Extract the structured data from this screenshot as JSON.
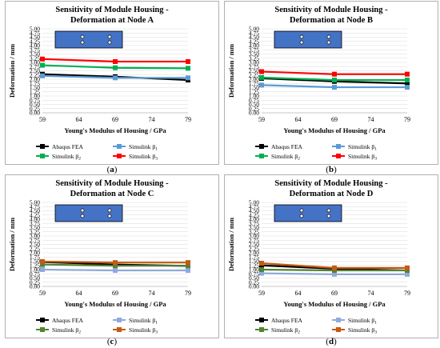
{
  "figures": [
    {
      "caption_open": "(",
      "caption_letter": "a",
      "caption_close": ")"
    },
    {
      "caption_open": "(",
      "caption_letter": "b",
      "caption_close": ")"
    },
    {
      "caption_open": "(",
      "caption_letter": "c",
      "caption_close": ")"
    },
    {
      "caption_open": "(",
      "caption_letter": "d",
      "caption_close": ")"
    }
  ],
  "chart_data": [
    {
      "type": "line",
      "title": [
        "Sensitivity of Module Housing -",
        "Deformation at Node A"
      ],
      "xlabel": "Young's Modulus of Housing / GPa",
      "ylabel": "Deformation / mm",
      "x": [
        59,
        69,
        79
      ],
      "xticks": [
        59,
        64,
        69,
        74,
        79
      ],
      "xlim": [
        59,
        79
      ],
      "ylim": [
        0,
        5
      ],
      "ytick_step": 0.25,
      "grid": true,
      "legend_position": "bottom",
      "series": [
        {
          "name": "Abaqus FEA",
          "color": "#000000",
          "values": [
            2.3,
            2.15,
            1.95
          ]
        },
        {
          "name": "Simulink β",
          "sub": "1",
          "color": "#5b9bd5",
          "values": [
            2.2,
            2.08,
            2.08
          ]
        },
        {
          "name": "Simulink β",
          "sub": "2",
          "color": "#00b050",
          "values": [
            2.83,
            2.68,
            2.65
          ]
        },
        {
          "name": "Simulink β",
          "sub": "3",
          "color": "#ff0000",
          "values": [
            3.2,
            3.05,
            3.05
          ]
        }
      ]
    },
    {
      "type": "line",
      "title": [
        "Sensitivity of Module Housing -",
        "Deformation at Node B"
      ],
      "xlabel": "Young's Modulus of Housing / GPa",
      "ylabel": "Deformation / mm",
      "x": [
        59,
        69,
        79
      ],
      "xticks": [
        59,
        64,
        69,
        74,
        79
      ],
      "xlim": [
        59,
        79
      ],
      "ylim": [
        0,
        5
      ],
      "ytick_step": 0.25,
      "grid": true,
      "legend_position": "bottom",
      "series": [
        {
          "name": "Abaqus FEA",
          "color": "#000000",
          "values": [
            2.05,
            1.87,
            1.75
          ]
        },
        {
          "name": "Simulink β",
          "sub": "1",
          "color": "#5b9bd5",
          "values": [
            1.65,
            1.52,
            1.52
          ]
        },
        {
          "name": "Simulink β",
          "sub": "2",
          "color": "#00b050",
          "values": [
            2.1,
            1.95,
            1.95
          ]
        },
        {
          "name": "Simulink β",
          "sub": "3",
          "color": "#ff0000",
          "values": [
            2.45,
            2.3,
            2.3
          ]
        }
      ]
    },
    {
      "type": "line",
      "title": [
        "Sensitivity of Module Housing -",
        "Deformation at Node C"
      ],
      "xlabel": "Young's Modulus of Housing / GPa",
      "ylabel": "Deformation / mm",
      "x": [
        59,
        69,
        79
      ],
      "xticks": [
        59,
        64,
        69,
        74,
        79
      ],
      "xlim": [
        59,
        79
      ],
      "ylim": [
        0,
        5
      ],
      "ytick_step": 0.25,
      "grid": true,
      "legend_position": "bottom",
      "series": [
        {
          "name": "Abaqus FEA",
          "color": "#000000",
          "values": [
            1.45,
            1.3,
            1.22
          ]
        },
        {
          "name": "Simulink β",
          "sub": "1",
          "color": "#8faadc",
          "values": [
            1.0,
            0.95,
            0.95
          ]
        },
        {
          "name": "Simulink β",
          "sub": "2",
          "color": "#548235",
          "values": [
            1.3,
            1.23,
            1.23
          ]
        },
        {
          "name": "Simulink β",
          "sub": "3",
          "color": "#c55a11",
          "values": [
            1.48,
            1.42,
            1.42
          ]
        }
      ]
    },
    {
      "type": "line",
      "title": [
        "Sensitivity of Module Housing -",
        "Deformation at Node D"
      ],
      "xlabel": "Young's Modulus of Housing / GPa",
      "ylabel": "Deformation / mm",
      "x": [
        59,
        69,
        79
      ],
      "xticks": [
        59,
        64,
        69,
        74,
        79
      ],
      "xlim": [
        59,
        79
      ],
      "ylim": [
        0,
        5
      ],
      "ytick_step": 0.25,
      "grid": true,
      "legend_position": "bottom",
      "series": [
        {
          "name": "Abaqus FEA",
          "color": "#000000",
          "values": [
            1.25,
            1.05,
            0.95
          ]
        },
        {
          "name": "Simulink β",
          "sub": "1",
          "color": "#8faadc",
          "values": [
            0.78,
            0.72,
            0.72
          ]
        },
        {
          "name": "Simulink β",
          "sub": "2",
          "color": "#548235",
          "values": [
            1.0,
            0.95,
            0.95
          ]
        },
        {
          "name": "Simulink β",
          "sub": "3",
          "color": "#c55a11",
          "values": [
            1.38,
            1.1,
            1.1
          ]
        }
      ]
    }
  ]
}
